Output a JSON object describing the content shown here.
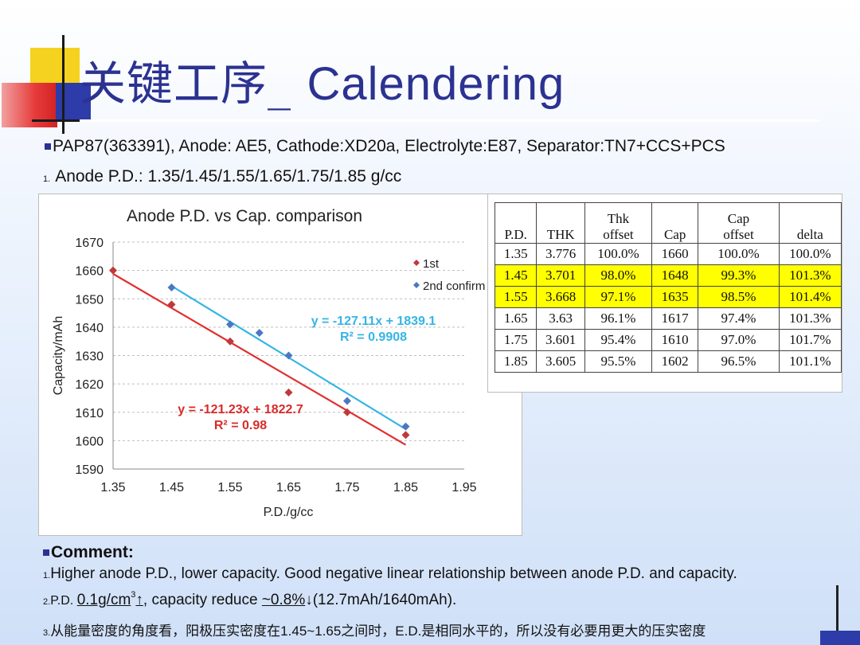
{
  "title": {
    "cn": "关键工序_ ",
    "en": "Calendering"
  },
  "header_bullet": "PAP87(363391), Anode: AE5, Cathode:XD20a, Electrolyte:E87, Separator:TN7+CCS+PCS",
  "item1": {
    "num": "1.",
    "text": "Anode P.D.: 1.35/1.45/1.55/1.65/1.75/1.85 g/cc"
  },
  "chart_data": {
    "type": "scatter",
    "title": "Anode P.D. vs Cap. comparison",
    "xlabel": "P.D./g/cc",
    "ylabel": "Capacity/mAh",
    "xlim": [
      1.35,
      1.95
    ],
    "ylim": [
      1590,
      1670
    ],
    "xticks": [
      "1.35",
      "1.45",
      "1.55",
      "1.65",
      "1.75",
      "1.85",
      "1.95"
    ],
    "yticks": [
      "1590",
      "1600",
      "1610",
      "1620",
      "1630",
      "1640",
      "1650",
      "1660",
      "1670"
    ],
    "grid": true,
    "legend_position": "top-right",
    "series": [
      {
        "name": "1st",
        "color": "#c0393b",
        "trend_color": "#e03030",
        "points": [
          [
            1.35,
            1660
          ],
          [
            1.45,
            1648
          ],
          [
            1.55,
            1635
          ],
          [
            1.65,
            1617
          ],
          [
            1.75,
            1610
          ],
          [
            1.85,
            1602
          ]
        ],
        "equation": "y = -121.23x + 1822.7",
        "r2": "R² = 0.98"
      },
      {
        "name": "2nd confirm",
        "color": "#4a78c2",
        "trend_color": "#35b5e5",
        "points": [
          [
            1.45,
            1654
          ],
          [
            1.55,
            1641
          ],
          [
            1.6,
            1638
          ],
          [
            1.65,
            1630
          ],
          [
            1.75,
            1614
          ],
          [
            1.85,
            1605
          ]
        ],
        "equation": "y = -127.11x + 1839.1",
        "r2": "R² = 0.9908"
      }
    ]
  },
  "table": {
    "headers": [
      [
        "P.D."
      ],
      [
        "THK"
      ],
      [
        "Thk",
        "offset"
      ],
      [
        "Cap"
      ],
      [
        "Cap",
        "offset"
      ],
      [
        "delta"
      ]
    ],
    "rows": [
      [
        "1.35",
        "3.776",
        "100.0%",
        "1660",
        "100.0%",
        "100.0%"
      ],
      [
        "1.45",
        "3.701",
        "98.0%",
        "1648",
        "99.3%",
        "101.3%"
      ],
      [
        "1.55",
        "3.668",
        "97.1%",
        "1635",
        "98.5%",
        "101.4%"
      ],
      [
        "1.65",
        "3.63",
        "96.1%",
        "1617",
        "97.4%",
        "101.3%"
      ],
      [
        "1.75",
        "3.601",
        "95.4%",
        "1610",
        "97.0%",
        "101.7%"
      ],
      [
        "1.85",
        "3.605",
        "95.5%",
        "1602",
        "96.5%",
        "101.1%"
      ]
    ],
    "highlighted_rows": [
      1,
      2
    ],
    "highlight_color": "#ffff00"
  },
  "comment": {
    "heading": "Comment:",
    "line1_num": "1.",
    "line1": "Higher anode P.D., lower capacity. Good negative linear relationship between anode P.D. and capacity.",
    "line2_num": "2.",
    "line2_pd": "P.D. ",
    "line2_amount": "0.1g/cm",
    "line2_sup": "3",
    "line2_up": "↑",
    "line2_mid": ", capacity reduce ",
    "line2_pct": "~0.8%",
    "line2_down": "↓",
    "line2_tail": "(12.7mAh/1640mAh).",
    "line3_num": "3.",
    "line3": "从能量密度的角度看，阳极压实密度在1.45~1.65之间时，E.D.是相同水平的，所以没有必要用更大的压实密度"
  }
}
